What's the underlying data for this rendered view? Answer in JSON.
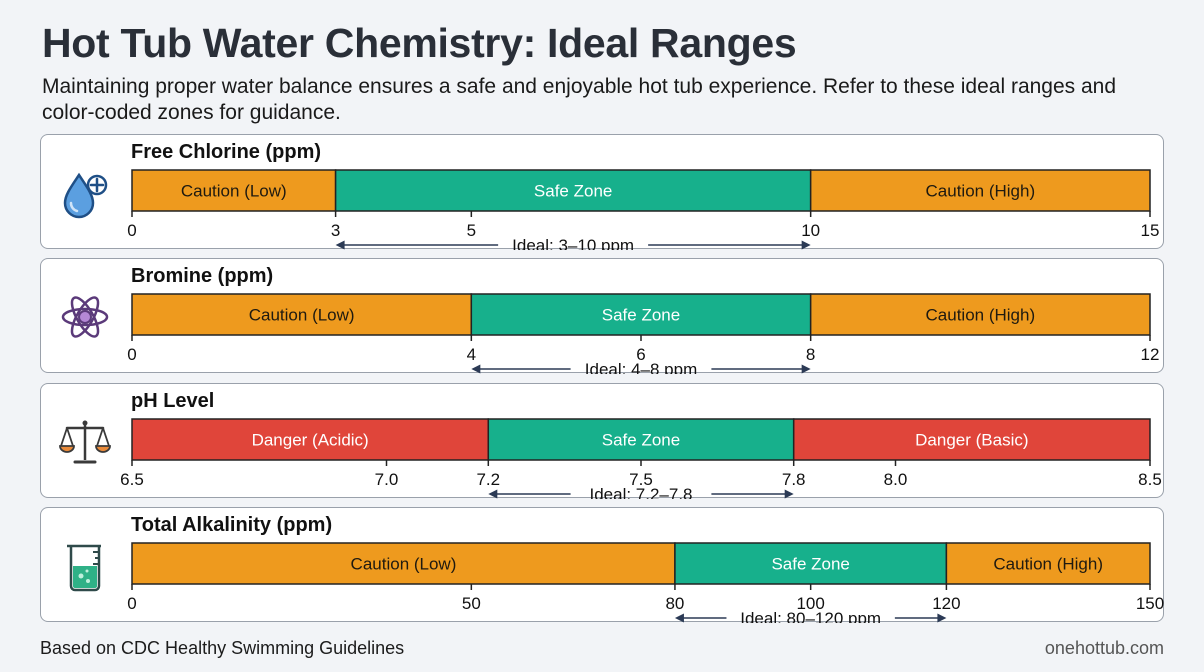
{
  "title": "Hot Tub Water Chemistry: Ideal Ranges",
  "subtitle": "Maintaining proper water balance ensures a safe and enjoyable hot tub experience. Refer to these ideal ranges and color-coded zones for guidance.",
  "footer": {
    "source": "Based on CDC Healthy Swimming Guidelines",
    "site": "onehottub.com"
  },
  "colors": {
    "caution": "#ee9a1e",
    "safe": "#17b08c",
    "danger": "#e0453a"
  },
  "chart_data": [
    {
      "type": "bar",
      "title": "Free Chlorine (ppm)",
      "icon": "water-drop-plus-icon",
      "xlim": [
        0,
        15
      ],
      "ticks": [
        {
          "value": 0,
          "label": "0"
        },
        {
          "value": 3,
          "label": "3"
        },
        {
          "value": 5,
          "label": "5"
        },
        {
          "value": 10,
          "label": "10"
        },
        {
          "value": 15,
          "label": "15"
        }
      ],
      "zones": [
        {
          "label": "Caution (Low)",
          "from": 0,
          "to": 3,
          "kind": "caution"
        },
        {
          "label": "Safe Zone",
          "from": 3,
          "to": 10,
          "kind": "safe"
        },
        {
          "label": "Caution (High)",
          "from": 10,
          "to": 15,
          "kind": "caution"
        }
      ],
      "ideal": {
        "label": "Ideal: 3–10 ppm",
        "from": 3,
        "to": 10
      }
    },
    {
      "type": "bar",
      "title": "Bromine (ppm)",
      "icon": "atom-icon",
      "xlim": [
        0,
        12
      ],
      "ticks": [
        {
          "value": 0,
          "label": "0"
        },
        {
          "value": 4,
          "label": "4"
        },
        {
          "value": 6,
          "label": "6"
        },
        {
          "value": 8,
          "label": "8"
        },
        {
          "value": 12,
          "label": "12"
        }
      ],
      "zones": [
        {
          "label": "Caution (Low)",
          "from": 0,
          "to": 4,
          "kind": "caution"
        },
        {
          "label": "Safe Zone",
          "from": 4,
          "to": 8,
          "kind": "safe"
        },
        {
          "label": "Caution (High)",
          "from": 8,
          "to": 12,
          "kind": "caution"
        }
      ],
      "ideal": {
        "label": "Ideal: 4–8 ppm",
        "from": 4,
        "to": 8
      }
    },
    {
      "type": "bar",
      "title": "pH Level",
      "icon": "balance-scale-icon",
      "xlim": [
        6.5,
        8.5
      ],
      "ticks": [
        {
          "value": 6.5,
          "label": "6.5"
        },
        {
          "value": 7.0,
          "label": "7.0"
        },
        {
          "value": 7.2,
          "label": "7.2"
        },
        {
          "value": 7.5,
          "label": "7.5"
        },
        {
          "value": 7.8,
          "label": "7.8"
        },
        {
          "value": 8.0,
          "label": "8.0"
        },
        {
          "value": 8.5,
          "label": "8.5"
        }
      ],
      "zones": [
        {
          "label": "Danger (Acidic)",
          "from": 6.5,
          "to": 7.2,
          "kind": "danger"
        },
        {
          "label": "Safe Zone",
          "from": 7.2,
          "to": 7.8,
          "kind": "safe"
        },
        {
          "label": "Danger (Basic)",
          "from": 7.8,
          "to": 8.5,
          "kind": "danger"
        }
      ],
      "ideal": {
        "label": "Ideal: 7.2–7.8",
        "from": 7.2,
        "to": 7.8
      }
    },
    {
      "type": "bar",
      "title": "Total Alkalinity (ppm)",
      "icon": "beaker-icon",
      "xlim": [
        0,
        150
      ],
      "ticks": [
        {
          "value": 0,
          "label": "0"
        },
        {
          "value": 50,
          "label": "50"
        },
        {
          "value": 80,
          "label": "80"
        },
        {
          "value": 100,
          "label": "100"
        },
        {
          "value": 120,
          "label": "120"
        },
        {
          "value": 150,
          "label": "150"
        }
      ],
      "zones": [
        {
          "label": "Caution (Low)",
          "from": 0,
          "to": 80,
          "kind": "caution"
        },
        {
          "label": "Safe Zone",
          "from": 80,
          "to": 120,
          "kind": "safe"
        },
        {
          "label": "Caution (High)",
          "from": 120,
          "to": 150,
          "kind": "caution"
        }
      ],
      "ideal": {
        "label": "Ideal: 80–120 ppm",
        "from": 80,
        "to": 120
      }
    }
  ]
}
